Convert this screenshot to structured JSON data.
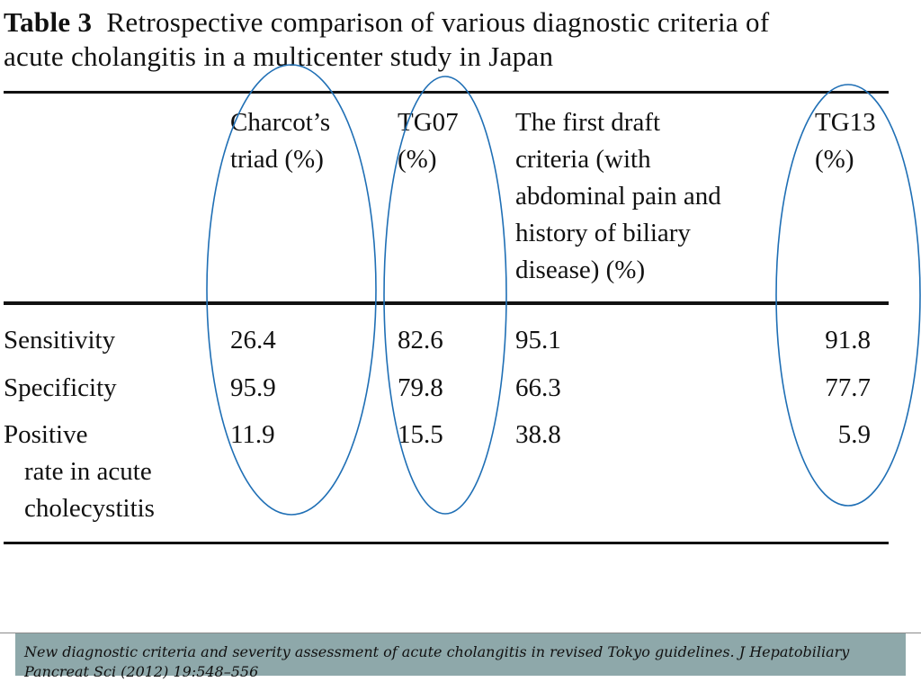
{
  "table": {
    "number": "Table 3",
    "title_line1": "Retrospective comparison of various diagnostic criteria of",
    "title_line2": "acute cholangitis in a multicenter study in Japan",
    "columns": {
      "charcot_line1": "Charcot’s",
      "charcot_line2": "triad (%)",
      "tg07_line1": "TG07",
      "tg07_line2": "(%)",
      "draft_line1": "The first draft",
      "draft_line2": "criteria (with",
      "draft_line3": "abdominal pain and",
      "draft_line4": "history of biliary",
      "draft_line5": "disease) (%)",
      "tg13_line1": "TG13",
      "tg13_line2": "(%)"
    },
    "rows": [
      {
        "label": "Sensitivity",
        "charcot": "26.4",
        "tg07": "82.6",
        "draft": "95.1",
        "tg13": "91.8"
      },
      {
        "label": "Specificity",
        "charcot": "95.9",
        "tg07": "79.8",
        "draft": "66.3",
        "tg13": "77.7"
      },
      {
        "label_line1": "Positive",
        "label_line2": "rate in acute",
        "label_line3": "cholecystitis",
        "charcot": "11.9",
        "tg07": "15.5",
        "draft": "38.8",
        "tg13": "5.9"
      }
    ]
  },
  "annotations": {
    "ellipse_color": "#1f6fb5"
  },
  "source": {
    "citation": "New diagnostic criteria and severity assessment of acute cholangitis in revised Tokyo guidelines. J Hepatobiliary Pancreat Sci (2012) 19:548–556"
  }
}
